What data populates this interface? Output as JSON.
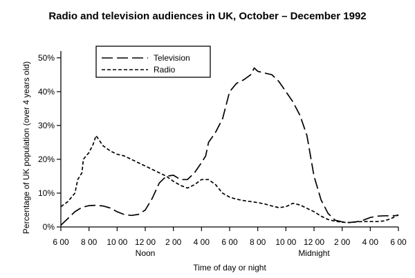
{
  "chart_data": {
    "type": "line",
    "title": "Radio and television audiences in UK, October – December 1992",
    "xlabel": "Time of day or night",
    "ylabel": "Percentage of UK population (over 4 years old)",
    "x_ticks": [
      "6 00",
      "8 00",
      "10 00",
      "12 00",
      "2 00",
      "4 00",
      "6 00",
      "8 00",
      "10 00",
      "12 00",
      "2 00",
      "4 00",
      "6 00"
    ],
    "x_tick_hours": [
      6,
      8,
      10,
      12,
      14,
      16,
      18,
      20,
      22,
      24,
      26,
      28,
      30
    ],
    "x_sublabels": [
      {
        "hour": 12,
        "text": "Noon"
      },
      {
        "hour": 24,
        "text": "Midnight"
      }
    ],
    "y_ticks": [
      "0%",
      "10%",
      "20%",
      "30%",
      "40%",
      "50%"
    ],
    "y_tick_values": [
      0,
      10,
      20,
      30,
      40,
      50
    ],
    "ylim": [
      0,
      52
    ],
    "xlim": [
      6,
      30
    ],
    "grid": false,
    "legend_position": "top-left",
    "series": [
      {
        "name": "Television",
        "dash": "long",
        "points": [
          [
            6.0,
            0.5
          ],
          [
            6.5,
            2.5
          ],
          [
            7.0,
            4.5
          ],
          [
            7.5,
            5.8
          ],
          [
            8.0,
            6.3
          ],
          [
            8.5,
            6.4
          ],
          [
            9.0,
            6.2
          ],
          [
            9.5,
            5.6
          ],
          [
            10.0,
            4.5
          ],
          [
            10.5,
            3.7
          ],
          [
            11.0,
            3.4
          ],
          [
            11.5,
            3.7
          ],
          [
            12.0,
            5.0
          ],
          [
            12.5,
            8.5
          ],
          [
            13.0,
            13.0
          ],
          [
            13.5,
            15.0
          ],
          [
            14.0,
            15.3
          ],
          [
            14.5,
            14.0
          ],
          [
            15.0,
            14.0
          ],
          [
            15.5,
            16.0
          ],
          [
            16.0,
            19.0
          ],
          [
            16.3,
            21.0
          ],
          [
            16.5,
            25.0
          ],
          [
            17.0,
            28.0
          ],
          [
            17.5,
            32.0
          ],
          [
            18.0,
            40.0
          ],
          [
            18.5,
            42.5
          ],
          [
            19.0,
            43.5
          ],
          [
            19.5,
            45.0
          ],
          [
            19.75,
            47.0
          ],
          [
            20.0,
            46.0
          ],
          [
            20.5,
            45.5
          ],
          [
            21.0,
            45.0
          ],
          [
            21.5,
            43.0
          ],
          [
            22.0,
            40.0
          ],
          [
            22.5,
            37.0
          ],
          [
            23.0,
            33.0
          ],
          [
            23.5,
            27.0
          ],
          [
            24.0,
            15.0
          ],
          [
            24.5,
            8.0
          ],
          [
            25.0,
            4.0
          ],
          [
            25.5,
            2.0
          ],
          [
            26.0,
            1.5
          ],
          [
            26.5,
            1.3
          ],
          [
            27.0,
            1.5
          ],
          [
            27.5,
            2.0
          ],
          [
            28.0,
            2.8
          ],
          [
            28.5,
            3.2
          ],
          [
            29.0,
            3.3
          ],
          [
            29.5,
            3.3
          ],
          [
            30.0,
            3.4
          ]
        ]
      },
      {
        "name": "Radio",
        "dash": "short",
        "points": [
          [
            6.0,
            6.0
          ],
          [
            6.5,
            7.5
          ],
          [
            7.0,
            10.0
          ],
          [
            7.2,
            14.0
          ],
          [
            7.5,
            16.0
          ],
          [
            7.6,
            20.0
          ],
          [
            8.0,
            22.0
          ],
          [
            8.3,
            24.5
          ],
          [
            8.5,
            27.0
          ],
          [
            9.0,
            24.0
          ],
          [
            9.5,
            22.5
          ],
          [
            10.0,
            21.5
          ],
          [
            10.5,
            21.0
          ],
          [
            11.0,
            20.0
          ],
          [
            11.5,
            19.0
          ],
          [
            12.0,
            18.0
          ],
          [
            12.5,
            17.0
          ],
          [
            13.0,
            16.0
          ],
          [
            13.5,
            15.0
          ],
          [
            14.0,
            13.5
          ],
          [
            14.5,
            12.3
          ],
          [
            15.0,
            11.5
          ],
          [
            15.5,
            12.5
          ],
          [
            16.0,
            14.0
          ],
          [
            16.5,
            14.0
          ],
          [
            17.0,
            12.5
          ],
          [
            17.5,
            10.0
          ],
          [
            18.0,
            8.8
          ],
          [
            18.5,
            8.2
          ],
          [
            19.0,
            7.8
          ],
          [
            19.5,
            7.5
          ],
          [
            20.0,
            7.2
          ],
          [
            20.5,
            6.8
          ],
          [
            21.0,
            6.2
          ],
          [
            21.5,
            5.7
          ],
          [
            22.0,
            6.0
          ],
          [
            22.5,
            7.0
          ],
          [
            23.0,
            6.5
          ],
          [
            23.5,
            5.5
          ],
          [
            24.0,
            4.5
          ],
          [
            24.5,
            3.2
          ],
          [
            25.0,
            2.2
          ],
          [
            25.5,
            1.7
          ],
          [
            26.0,
            1.4
          ],
          [
            26.5,
            1.3
          ],
          [
            27.0,
            1.5
          ],
          [
            27.5,
            1.6
          ],
          [
            28.0,
            1.6
          ],
          [
            28.5,
            1.6
          ],
          [
            29.0,
            1.8
          ],
          [
            29.5,
            2.5
          ],
          [
            30.0,
            3.6
          ]
        ]
      }
    ]
  }
}
